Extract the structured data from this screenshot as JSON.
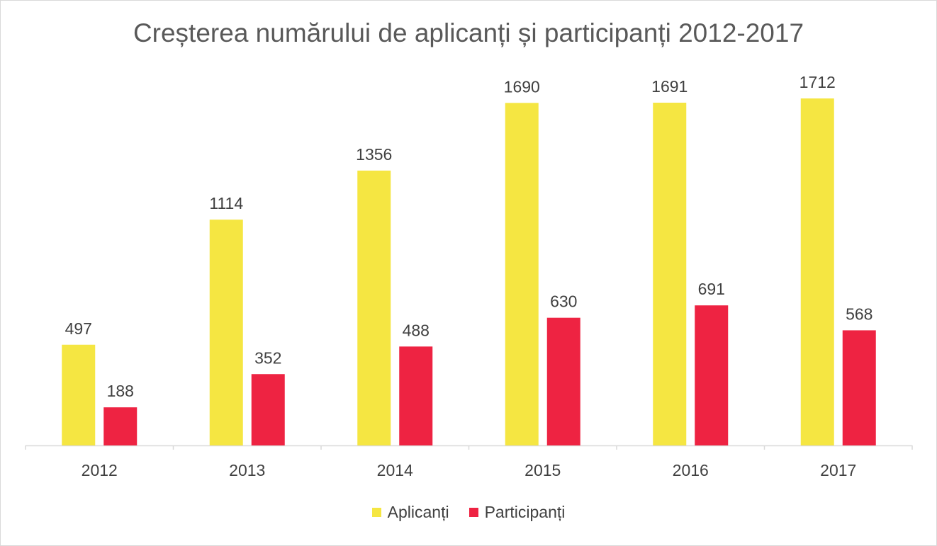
{
  "chart_data": {
    "type": "bar",
    "title": "Creșterea numărului de aplicanți și participanți 2012-2017",
    "categories": [
      "2012",
      "2013",
      "2014",
      "2015",
      "2016",
      "2017"
    ],
    "series": [
      {
        "name": "Aplicanți",
        "color": "#f5e642",
        "values": [
          497,
          1114,
          1356,
          1690,
          1691,
          1712
        ]
      },
      {
        "name": "Participanți",
        "color": "#ee2342",
        "values": [
          188,
          352,
          488,
          630,
          691,
          568
        ]
      }
    ],
    "xlabel": "",
    "ylabel": "",
    "ylim": [
      0,
      1900
    ],
    "grid": false,
    "data_labels": true,
    "legend_position": "bottom"
  }
}
